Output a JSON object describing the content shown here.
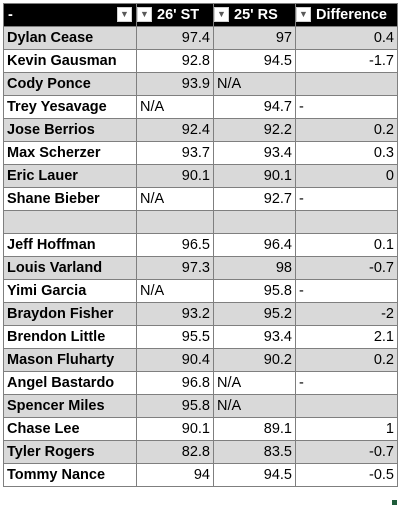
{
  "columns": [
    "-",
    "26' ST",
    "25' RS",
    "Difference"
  ],
  "filter_icon": "chevron-down-icon",
  "rows": [
    {
      "name": "Dylan Cease",
      "st": "97.4",
      "rs": "97",
      "diff": "0.4",
      "shade": true
    },
    {
      "name": "Kevin Gausman",
      "st": "92.8",
      "rs": "94.5",
      "diff": "-1.7",
      "shade": false
    },
    {
      "name": "Cody Ponce",
      "st": "93.9",
      "rs": "N/A",
      "diff": "",
      "shade": true
    },
    {
      "name": "Trey Yesavage",
      "st": "N/A",
      "rs": "94.7",
      "diff": "-",
      "shade": false
    },
    {
      "name": "Jose Berrios",
      "st": "92.4",
      "rs": "92.2",
      "diff": "0.2",
      "shade": true
    },
    {
      "name": "Max Scherzer",
      "st": "93.7",
      "rs": "93.4",
      "diff": "0.3",
      "shade": false
    },
    {
      "name": "Eric Lauer",
      "st": "90.1",
      "rs": "90.1",
      "diff": "0",
      "shade": true
    },
    {
      "name": "Shane Bieber",
      "st": "N/A",
      "rs": "92.7",
      "diff": "-",
      "shade": false
    },
    {
      "name": "",
      "st": "",
      "rs": "",
      "diff": "",
      "shade": true
    },
    {
      "name": "Jeff Hoffman",
      "st": "96.5",
      "rs": "96.4",
      "diff": "0.1",
      "shade": false
    },
    {
      "name": "Louis Varland",
      "st": "97.3",
      "rs": "98",
      "diff": "-0.7",
      "shade": true
    },
    {
      "name": "Yimi Garcia",
      "st": "N/A",
      "rs": "95.8",
      "diff": "-",
      "shade": false
    },
    {
      "name": "Braydon Fisher",
      "st": "93.2",
      "rs": "95.2",
      "diff": "-2",
      "shade": true
    },
    {
      "name": "Brendon Little",
      "st": "95.5",
      "rs": "93.4",
      "diff": "2.1",
      "shade": false
    },
    {
      "name": "Mason Fluharty",
      "st": "90.4",
      "rs": "90.2",
      "diff": "0.2",
      "shade": true
    },
    {
      "name": "Angel Bastardo",
      "st": "96.8",
      "rs": "N/A",
      "diff": "-",
      "shade": false
    },
    {
      "name": "Spencer Miles",
      "st": "95.8",
      "rs": "N/A",
      "diff": "",
      "shade": true
    },
    {
      "name": "Chase Lee",
      "st": "90.1",
      "rs": "89.1",
      "diff": "1",
      "shade": false
    },
    {
      "name": "Tyler Rogers",
      "st": "82.8",
      "rs": "83.5",
      "diff": "-0.7",
      "shade": true
    },
    {
      "name": "Tommy Nance",
      "st": "94",
      "rs": "94.5",
      "diff": "-0.5",
      "shade": false
    }
  ]
}
